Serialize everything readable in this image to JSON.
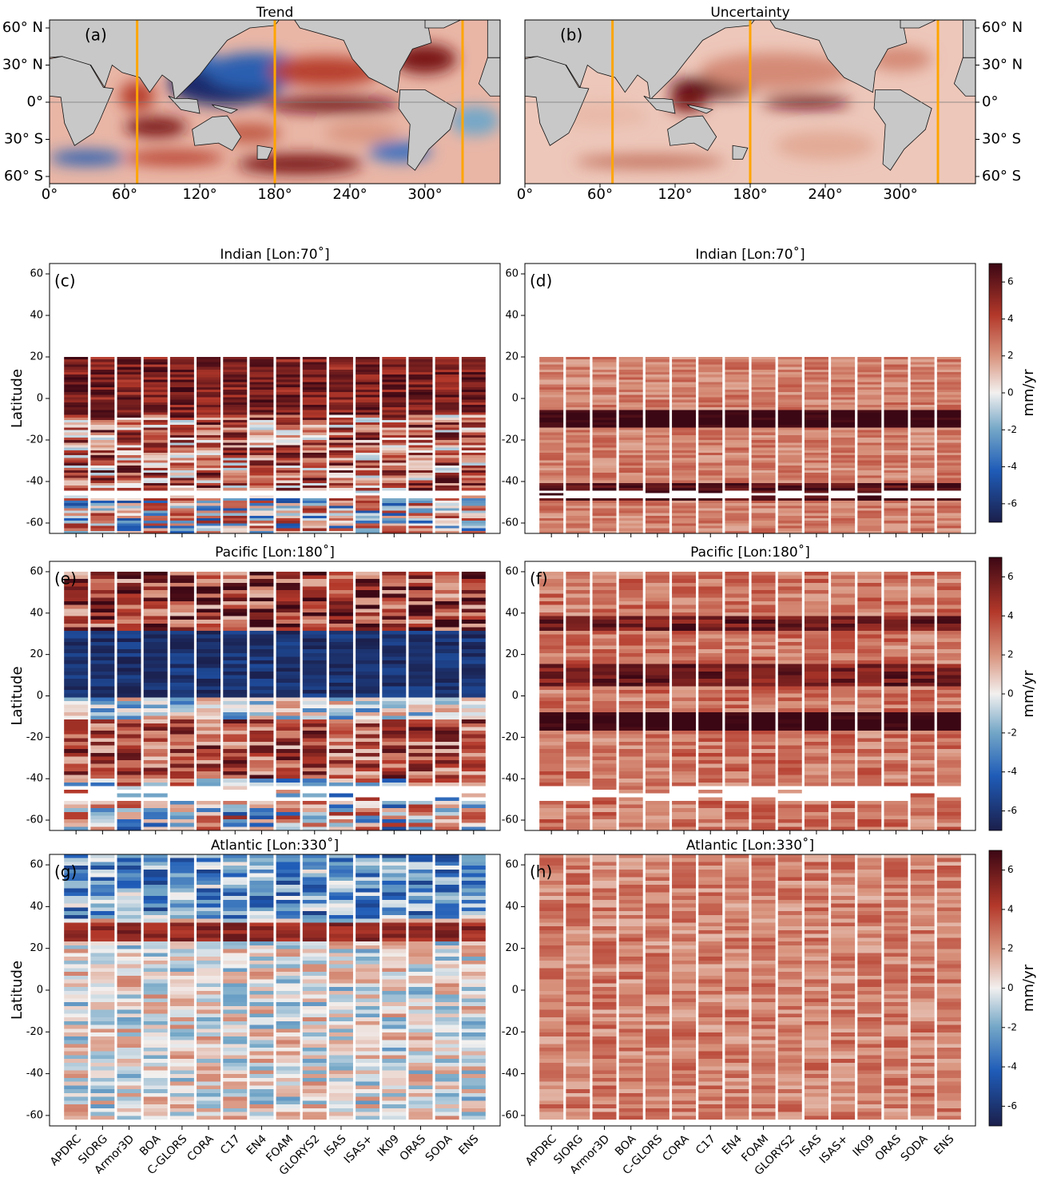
{
  "chart_data": {
    "type": "stripes",
    "maps": [
      {
        "title": "Trend",
        "label": "(a)"
      },
      {
        "title": "Uncertainty",
        "label": "(b)"
      }
    ],
    "map_xticks": [
      {
        "value": 0,
        "label": "0°"
      },
      {
        "value": 60,
        "label": "60°"
      },
      {
        "value": 120,
        "label": "120°"
      },
      {
        "value": 180,
        "label": "180°"
      },
      {
        "value": 240,
        "label": "240°"
      },
      {
        "value": 300,
        "label": "300°"
      }
    ],
    "map_yticks": [
      {
        "value": 60,
        "label": "60° N"
      },
      {
        "value": 30,
        "label": "30° N"
      },
      {
        "value": 0,
        "label": "0°"
      },
      {
        "value": -30,
        "label": "30° S"
      },
      {
        "value": -60,
        "label": "60° S"
      }
    ],
    "section_lons": [
      70,
      180,
      330
    ],
    "section_color": "#ffa500",
    "panels": [
      {
        "label": "(c)",
        "title": "Indian [Lon:70˚]"
      },
      {
        "label": "(d)",
        "title": "Indian [Lon:70˚]"
      },
      {
        "label": "(e)",
        "title": "Pacific [Lon:180˚]"
      },
      {
        "label": "(f)",
        "title": "Pacific [Lon:180˚]"
      },
      {
        "label": "(g)",
        "title": "Atlantic [Lon:330˚]"
      },
      {
        "label": "(h)",
        "title": "Atlantic [Lon:330˚]"
      }
    ],
    "categories": [
      "APDRC",
      "SIORG",
      "Armor3D",
      "BOA",
      "C-GLORS",
      "CORA",
      "C17",
      "EN4",
      "FOAM",
      "GLORYS2",
      "ISAS",
      "ISAS+",
      "IK09",
      "ORAS",
      "SODA",
      "ENS"
    ],
    "ylabel": "Latitude",
    "ylim": [
      -65,
      65
    ],
    "yticks": [
      -60,
      -40,
      -20,
      0,
      20,
      40,
      60
    ],
    "colorbar": {
      "label": "mm/yr",
      "lim": [
        -7,
        7
      ],
      "ticks": [
        -6,
        -4,
        -2,
        0,
        2,
        4,
        6
      ]
    }
  }
}
